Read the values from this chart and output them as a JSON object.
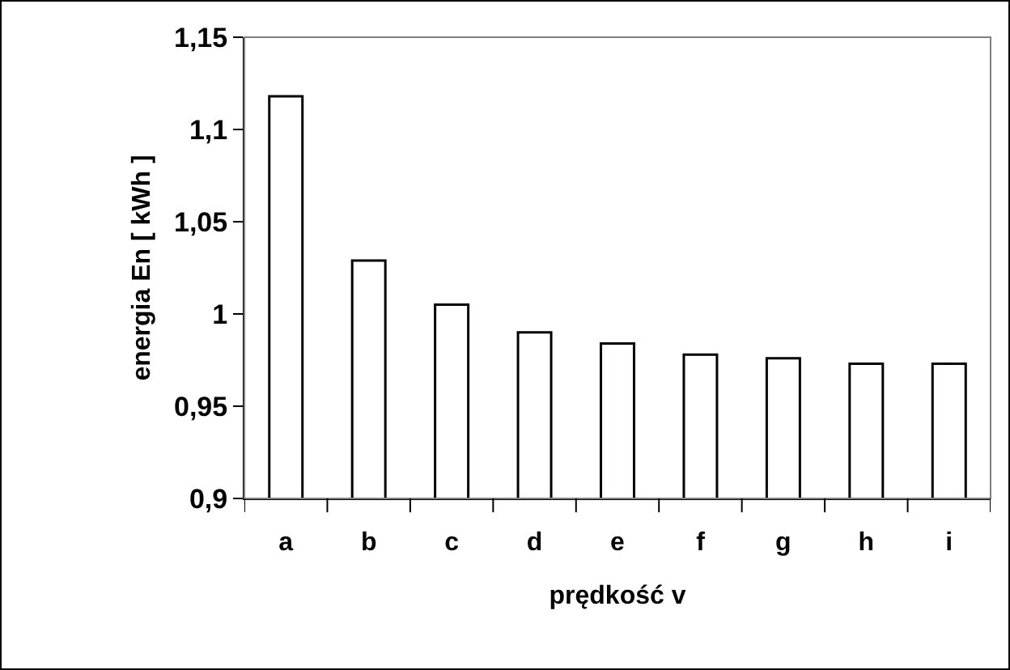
{
  "chart_data": {
    "type": "bar",
    "xlabel": "prędkość v",
    "ylabel": "energia En [ kWh ]",
    "categories": [
      "a",
      "b",
      "c",
      "d",
      "e",
      "f",
      "g",
      "h",
      "i"
    ],
    "values": [
      1.118,
      1.029,
      1.005,
      0.99,
      0.984,
      0.978,
      0.976,
      0.973,
      0.973
    ],
    "color": "#ffffff",
    "ylim": [
      0.9,
      1.15
    ],
    "yticks": [
      {
        "value": 0.9,
        "label": "0,9"
      },
      {
        "value": 0.95,
        "label": "0,95"
      },
      {
        "value": 1,
        "label": "1"
      },
      {
        "value": 1.05,
        "label": "1,05"
      },
      {
        "value": 1.1,
        "label": "1,1"
      },
      {
        "value": 1.15,
        "label": "1,15"
      }
    ],
    "grid": false
  }
}
